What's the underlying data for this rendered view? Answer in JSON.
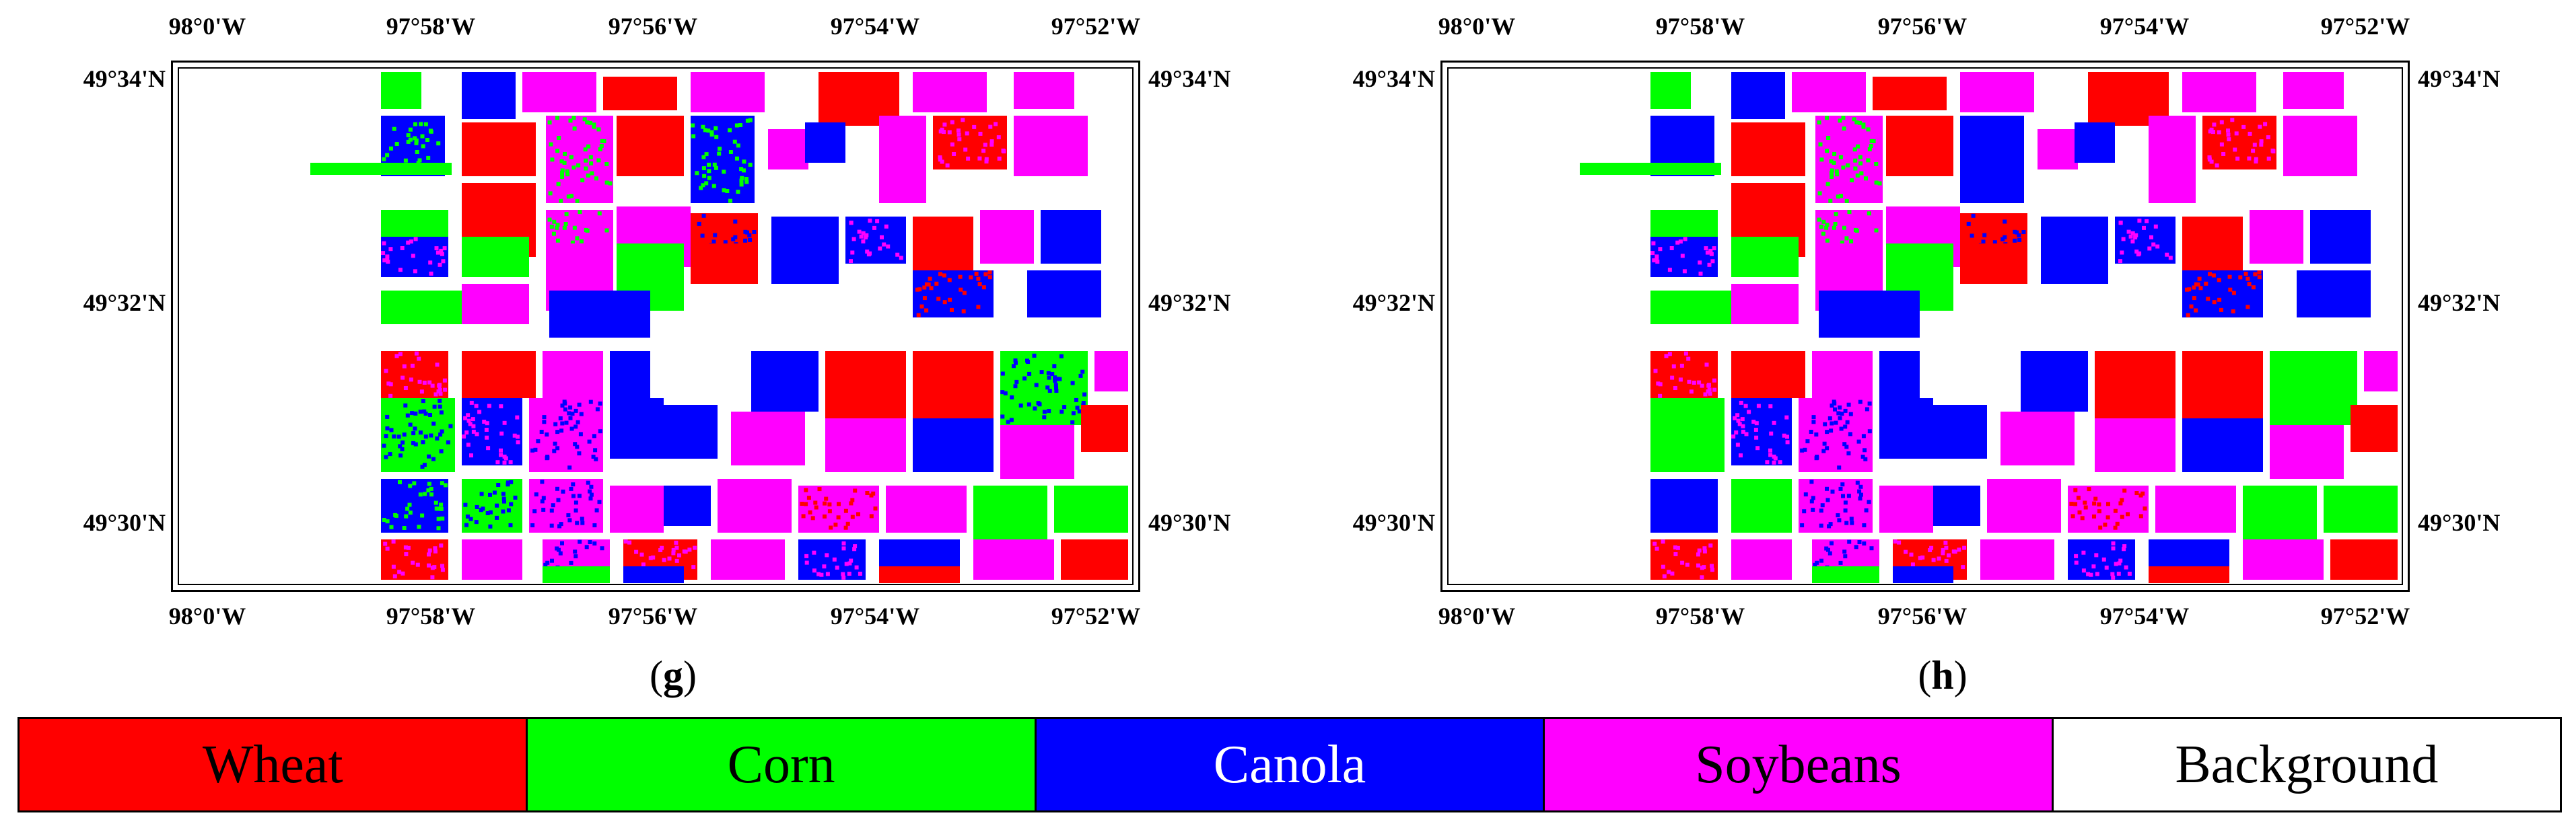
{
  "colors": {
    "wheat": "#ff0000",
    "corn": "#00ff00",
    "canola": "#0000ff",
    "soybeans": "#ff00ff",
    "background": "#ffffff"
  },
  "lon_labels": [
    "98°0'W",
    "97°58'W",
    "97°56'W",
    "97°54'W",
    "97°52'W"
  ],
  "lat_labels": [
    "49°34'N",
    "49°32'N",
    "49°30'N"
  ],
  "panels": [
    {
      "id": "g",
      "open": "(",
      "letter": "g",
      "close": ")"
    },
    {
      "id": "h",
      "open": "(",
      "letter": "h",
      "close": ")"
    }
  ],
  "legend": [
    {
      "label": "Wheat",
      "class": "wheat",
      "color": "#ff0000",
      "text_color": "#000000"
    },
    {
      "label": "Corn",
      "class": "corn",
      "color": "#00ff00",
      "text_color": "#000000"
    },
    {
      "label": "Canola",
      "class": "canola",
      "color": "#0000ff",
      "text_color": "#ffffff"
    },
    {
      "label": "Soybeans",
      "class": "soybeans",
      "color": "#ff00ff",
      "text_color": "#000000"
    },
    {
      "label": "Background",
      "class": "background",
      "color": "#ffffff",
      "text_color": "#000000"
    }
  ]
}
